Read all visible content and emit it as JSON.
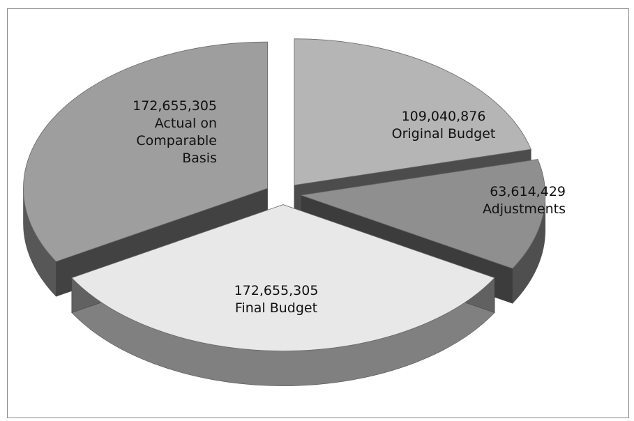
{
  "chart_data": {
    "type": "pie",
    "title": "",
    "labels_format": "value_and_category",
    "slices": [
      {
        "category": "Original Budget",
        "value": 109040876,
        "value_text": "109,040,876",
        "label_lines": [
          "Original Budget"
        ],
        "color": "#b5b5b5",
        "exploded": true
      },
      {
        "category": "Adjustments",
        "value": 63614429,
        "value_text": "63,614,429",
        "label_lines": [
          "Adjustments"
        ],
        "color": "#8f8f8f",
        "exploded": true
      },
      {
        "category": "Final Budget",
        "value": 172655305,
        "value_text": "172,655,305",
        "label_lines": [
          "Final Budget"
        ],
        "color": "#e8e8e8",
        "exploded": true
      },
      {
        "category": "Actual on Comparable Basis",
        "value": 172655305,
        "value_text": "172,655,305",
        "label_lines": [
          "Actual on",
          "Comparable",
          "Basis"
        ],
        "color": "#9e9e9e",
        "exploded": true
      }
    ],
    "legend": "none",
    "style": "3d-exploded-pie-grayscale"
  }
}
